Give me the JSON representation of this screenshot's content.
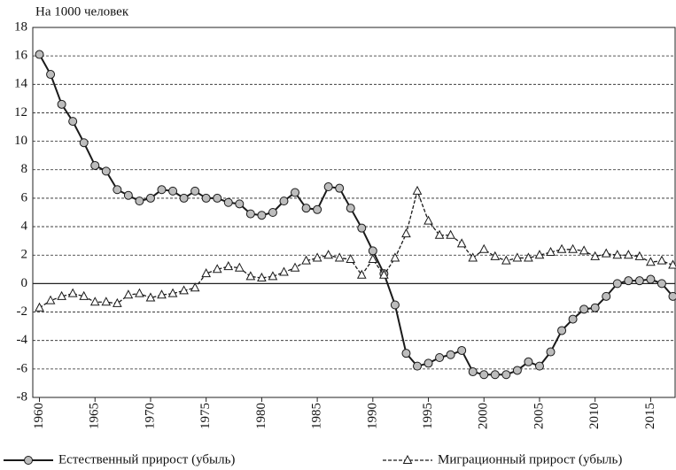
{
  "chart_data": {
    "type": "line",
    "y_label": "На 1000 человек",
    "x": [
      1960,
      1961,
      1962,
      1963,
      1964,
      1965,
      1966,
      1967,
      1968,
      1969,
      1970,
      1971,
      1972,
      1973,
      1974,
      1975,
      1976,
      1977,
      1978,
      1979,
      1980,
      1981,
      1982,
      1983,
      1984,
      1985,
      1986,
      1987,
      1988,
      1989,
      1990,
      1991,
      1992,
      1993,
      1994,
      1995,
      1996,
      1997,
      1998,
      1999,
      2000,
      2001,
      2002,
      2003,
      2004,
      2005,
      2006,
      2007,
      2008,
      2009,
      2010,
      2011,
      2012,
      2013,
      2014,
      2015,
      2016,
      2017
    ],
    "series": [
      {
        "name": "Естественный прирост (убыль)",
        "color": "#1a1a1a",
        "marker_fill": "#bdbdbd",
        "line_style": "solid",
        "marker": "circle",
        "values": [
          16.1,
          14.7,
          12.6,
          11.4,
          9.9,
          8.3,
          7.9,
          6.6,
          6.2,
          5.8,
          6.0,
          6.6,
          6.5,
          6.0,
          6.5,
          6.0,
          6.0,
          5.7,
          5.6,
          4.9,
          4.8,
          5.0,
          5.8,
          6.4,
          5.3,
          5.2,
          6.8,
          6.7,
          5.3,
          3.9,
          2.3,
          0.7,
          -1.5,
          -4.9,
          -5.8,
          -5.6,
          -5.2,
          -5.0,
          -4.7,
          -6.2,
          -6.4,
          -6.4,
          -6.4,
          -6.1,
          -5.5,
          -5.8,
          -4.8,
          -3.3,
          -2.5,
          -1.8,
          -1.7,
          -0.9,
          0.0,
          0.2,
          0.2,
          0.3,
          0.0,
          -0.9
        ]
      },
      {
        "name": "Миграционный прирост (убыль)",
        "color": "#1a1a1a",
        "marker_fill": "#ffffff",
        "line_style": "dashed",
        "marker": "triangle",
        "values": [
          -1.7,
          -1.2,
          -0.9,
          -0.7,
          -0.9,
          -1.3,
          -1.3,
          -1.4,
          -0.8,
          -0.7,
          -1.0,
          -0.8,
          -0.7,
          -0.5,
          -0.3,
          0.7,
          1.0,
          1.2,
          1.1,
          0.5,
          0.4,
          0.5,
          0.8,
          1.1,
          1.6,
          1.8,
          2.0,
          1.8,
          1.7,
          0.6,
          1.7,
          0.6,
          1.8,
          3.5,
          6.5,
          4.4,
          3.4,
          3.4,
          2.8,
          1.8,
          2.4,
          1.9,
          1.6,
          1.8,
          1.8,
          2.0,
          2.2,
          2.4,
          2.4,
          2.3,
          1.9,
          2.1,
          2.0,
          2.0,
          1.9,
          1.5,
          1.6,
          1.3
        ]
      }
    ],
    "xlim": [
      1959.4,
      2017.2
    ],
    "xticks": [
      1960,
      1965,
      1970,
      1975,
      1980,
      1985,
      1990,
      1995,
      2000,
      2005,
      2010,
      2015
    ],
    "ylim": [
      -8,
      18
    ],
    "yticks": [
      -8,
      -6,
      -4,
      -2,
      0,
      2,
      4,
      6,
      8,
      10,
      12,
      14,
      16,
      18
    ],
    "grid": true,
    "legend": "bottom"
  }
}
